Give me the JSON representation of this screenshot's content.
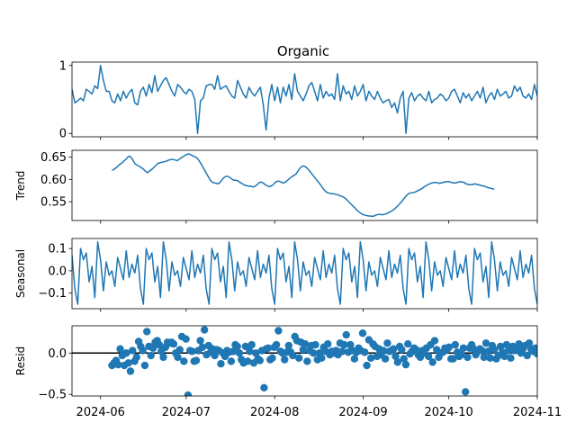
{
  "title": "Organic",
  "series_color": "#1f77b4",
  "zero_line_color": "#000000",
  "x_ticks": [
    "2024-06",
    "2024-07",
    "2024-08",
    "2024-09",
    "2024-10",
    "2024-11"
  ],
  "chart_data": {
    "type": "line",
    "xlim": [
      "2024-05-22",
      "2024-11-01"
    ],
    "panels": [
      {
        "name": "observed",
        "type": "line",
        "ylabel": "",
        "ylim": [
          -0.05,
          1.05
        ],
        "yticks": [
          0,
          1
        ],
        "ytick_labels": [
          "0",
          "1"
        ],
        "x_start": "2024-05-22",
        "values": [
          0.65,
          0.45,
          0.48,
          0.52,
          0.48,
          0.65,
          0.62,
          0.58,
          0.7,
          0.66,
          1.0,
          0.78,
          0.62,
          0.62,
          0.48,
          0.45,
          0.58,
          0.48,
          0.62,
          0.52,
          0.6,
          0.65,
          0.45,
          0.42,
          0.62,
          0.68,
          0.55,
          0.72,
          0.6,
          0.85,
          0.62,
          0.7,
          0.78,
          0.82,
          0.72,
          0.62,
          0.55,
          0.72,
          0.68,
          0.62,
          0.58,
          0.65,
          0.62,
          0.5,
          0.0,
          0.48,
          0.52,
          0.7,
          0.72,
          0.72,
          0.65,
          0.85,
          0.65,
          0.68,
          0.7,
          0.62,
          0.55,
          0.52,
          0.78,
          0.68,
          0.58,
          0.52,
          0.68,
          0.6,
          0.55,
          0.62,
          0.68,
          0.42,
          0.05,
          0.52,
          0.72,
          0.48,
          0.68,
          0.45,
          0.68,
          0.55,
          0.72,
          0.5,
          0.88,
          0.62,
          0.55,
          0.48,
          0.58,
          0.7,
          0.75,
          0.62,
          0.48,
          0.72,
          0.52,
          0.62,
          0.55,
          0.58,
          0.5,
          0.88,
          0.48,
          0.7,
          0.58,
          0.62,
          0.5,
          0.7,
          0.55,
          0.62,
          0.72,
          0.48,
          0.62,
          0.55,
          0.5,
          0.62,
          0.52,
          0.45,
          0.48,
          0.5,
          0.38,
          0.45,
          0.3,
          0.52,
          0.62,
          0.0,
          0.52,
          0.6,
          0.48,
          0.55,
          0.58,
          0.52,
          0.48,
          0.62,
          0.45,
          0.5,
          0.52,
          0.58,
          0.55,
          0.48,
          0.52,
          0.62,
          0.65,
          0.55,
          0.45,
          0.6,
          0.52,
          0.58,
          0.48,
          0.55,
          0.62,
          0.52,
          0.68,
          0.45,
          0.55,
          0.6,
          0.5,
          0.65,
          0.55,
          0.58,
          0.62,
          0.52,
          0.55,
          0.7,
          0.62,
          0.68,
          0.55,
          0.52,
          0.58,
          0.5,
          0.72,
          0.55,
          0.6,
          0.52,
          0.62,
          0.55,
          0.65,
          0.5,
          0.62,
          0.55,
          0.52,
          0.58,
          0.55,
          0.55,
          0.55,
          0.5,
          0.58,
          0.45
        ]
      },
      {
        "name": "trend",
        "type": "line",
        "ylabel": "Trend",
        "ylim": [
          0.508,
          0.665
        ],
        "yticks": [
          0.55,
          0.6,
          0.65
        ],
        "ytick_labels": [
          "0.55",
          "0.60",
          "0.65"
        ],
        "x_start": "2024-06-05",
        "values": [
          0.62,
          0.622,
          0.625,
          0.628,
          0.632,
          0.635,
          0.638,
          0.642,
          0.645,
          0.65,
          0.652,
          0.648,
          0.642,
          0.635,
          0.632,
          0.63,
          0.628,
          0.625,
          0.622,
          0.618,
          0.615,
          0.618,
          0.621,
          0.624,
          0.628,
          0.632,
          0.636,
          0.637,
          0.638,
          0.639,
          0.64,
          0.641,
          0.643,
          0.644,
          0.645,
          0.644,
          0.643,
          0.642,
          0.645,
          0.648,
          0.65,
          0.653,
          0.655,
          0.657,
          0.656,
          0.654,
          0.652,
          0.65,
          0.648,
          0.643,
          0.637,
          0.63,
          0.623,
          0.616,
          0.609,
          0.602,
          0.596,
          0.593,
          0.592,
          0.591,
          0.59,
          0.593,
          0.598,
          0.603,
          0.606,
          0.607,
          0.606,
          0.603,
          0.6,
          0.598,
          0.598,
          0.597,
          0.594,
          0.592,
          0.589,
          0.587,
          0.586,
          0.585,
          0.585,
          0.584,
          0.583,
          0.585,
          0.588,
          0.592,
          0.594,
          0.593,
          0.59,
          0.587,
          0.585,
          0.584,
          0.585,
          0.588,
          0.592,
          0.595,
          0.596,
          0.595,
          0.593,
          0.592,
          0.594,
          0.597,
          0.601,
          0.604,
          0.607,
          0.609,
          0.612,
          0.618,
          0.624,
          0.628,
          0.63,
          0.629,
          0.626,
          0.622,
          0.617,
          0.612,
          0.607,
          0.602,
          0.597,
          0.592,
          0.587,
          0.581,
          0.576,
          0.572,
          0.57,
          0.569,
          0.568,
          0.568,
          0.567,
          0.566,
          0.565,
          0.563,
          0.562,
          0.56,
          0.557,
          0.553,
          0.549,
          0.545,
          0.541,
          0.537,
          0.533,
          0.529,
          0.526,
          0.523,
          0.521,
          0.52,
          0.519,
          0.518,
          0.518,
          0.517,
          0.518,
          0.52,
          0.521,
          0.522,
          0.521,
          0.521,
          0.522,
          0.523,
          0.525,
          0.527,
          0.529,
          0.532,
          0.535,
          0.539,
          0.543,
          0.547,
          0.552,
          0.557,
          0.562,
          0.566,
          0.569,
          0.57,
          0.57,
          0.571,
          0.573,
          0.575,
          0.577,
          0.579,
          0.582,
          0.585,
          0.587,
          0.589,
          0.591,
          0.592,
          0.593,
          0.593,
          0.592,
          0.591,
          0.592,
          0.593,
          0.594,
          0.595,
          0.595,
          0.594,
          0.593,
          0.592,
          0.592,
          0.593,
          0.594,
          0.595,
          0.594,
          0.593,
          0.59,
          0.589,
          0.588,
          0.588,
          0.589,
          0.59,
          0.589,
          0.588,
          0.587,
          0.586,
          0.585,
          0.584,
          0.582,
          0.581,
          0.58,
          0.579,
          0.578
        ]
      },
      {
        "name": "seasonal",
        "type": "line",
        "ylabel": "Seasonal",
        "ylim": [
          -0.17,
          0.145
        ],
        "yticks": [
          -0.1,
          0.0,
          0.1
        ],
        "ytick_labels": [
          "−0.1",
          "0.0",
          "0.1"
        ],
        "x_start": "2024-05-22",
        "period": 23,
        "pattern": [
          0.07,
          -0.08,
          -0.15,
          0.1,
          0.05,
          0.08,
          -0.05,
          0.02,
          -0.12,
          0.13,
          0.05,
          -0.09,
          0.04,
          -0.02,
          0.0,
          -0.07,
          0.06,
          0.01,
          -0.04,
          0.09,
          -0.03,
          0.03,
          -0.01
        ]
      },
      {
        "name": "resid",
        "type": "scatter",
        "ylabel": "Resid",
        "ylim": [
          -0.52,
          0.33
        ],
        "yticks": [
          -0.5,
          0.0
        ],
        "ytick_labels": [
          "−0.5",
          "0.0"
        ],
        "baseline": 0,
        "x_start": "2024-06-05",
        "values": [
          -0.15,
          -0.12,
          -0.09,
          -0.14,
          0.05,
          -0.03,
          -0.15,
          0.0,
          -0.12,
          -0.22,
          0.03,
          -0.1,
          -0.05,
          0.14,
          0.08,
          0.03,
          -0.15,
          0.26,
          0.08,
          -0.03,
          0.06,
          0.13,
          0.15,
          0.1,
          0.02,
          -0.05,
          0.07,
          0.13,
          0.12,
          0.13,
          0.11,
          0.0,
          -0.05,
          0.04,
          0.2,
          -0.1,
          0.17,
          -0.51,
          0.03,
          0.02,
          -0.1,
          -0.09,
          0.03,
          0.15,
          0.07,
          0.28,
          -0.02,
          0.09,
          0.01,
          0.05,
          -0.03,
          0.04,
          0.03,
          -0.13,
          0.0,
          -0.04,
          0.03,
          0.01,
          -0.1,
          0.02,
          0.1,
          0.08,
          0.0,
          -0.08,
          -0.12,
          0.08,
          -0.1,
          0.02,
          0.1,
          -0.12,
          0.0,
          -0.07,
          -0.09,
          0.03,
          -0.42,
          0.05,
          0.06,
          -0.08,
          -0.06,
          0.07,
          0.1,
          0.27,
          0.02,
          0.0,
          -0.08,
          0.01,
          0.09,
          0.01,
          -0.03,
          0.2,
          0.15,
          -0.06,
          0.13,
          0.04,
          0.11,
          -0.1,
          0.03,
          0.09,
          0.0,
          0.1,
          -0.08,
          0.0,
          -0.06,
          0.07,
          0.02,
          0.11,
          -0.02,
          0.02,
          0.0,
          0.03,
          -0.02,
          0.12,
          0.02,
          0.1,
          0.22,
          0.01,
          0.1,
          0.03,
          -0.07,
          0.01,
          0.06,
          0.03,
          0.24,
          0.01,
          -0.15,
          0.16,
          -0.06,
          0.11,
          0.08,
          -0.04,
          0.05,
          -0.02,
          0.03,
          -0.07,
          0.12,
          0.02,
          0.03,
          0.05,
          -0.04,
          -0.11,
          0.08,
          0.04,
          -0.07,
          -0.14,
          0.11,
          -0.01,
          0.02,
          0.06,
          0.04,
          -0.02,
          -0.05,
          0.03,
          0.0,
          0.06,
          -0.04,
          0.1,
          -0.11,
          0.15,
          0.04,
          -0.05,
          0.0,
          0.01,
          0.06,
          0.04,
          0.07,
          -0.07,
          -0.07,
          0.1,
          0.01,
          -0.04,
          -0.02,
          0.06,
          -0.47,
          -0.05,
          0.06,
          0.1,
          0.05,
          -0.02,
          0.02,
          0.05,
          0.03,
          -0.05,
          0.12,
          0.02,
          -0.06,
          0.09,
          0.04,
          -0.07,
          -0.03,
          0.08,
          0.01,
          -0.04,
          0.1,
          0.03,
          -0.06,
          0.08,
          0.03,
          0.07,
          0.11,
          0.0,
          0.05,
          0.09,
          -0.03,
          0.12,
          0.04,
          0.02,
          0.06,
          -0.01,
          0.05,
          0.08,
          0.13,
          0.06,
          0.02,
          -0.06,
          0.09,
          0.04,
          0.0,
          0.12,
          0.08,
          0.05,
          0.1,
          0.03,
          0.11,
          -0.03,
          0.12,
          0.05,
          0.02,
          -0.08,
          -0.1,
          0.0,
          0.05,
          0.1,
          0.01,
          -0.05,
          0.06,
          0.03,
          -0.02,
          0.09,
          0.08,
          0.01,
          0.04,
          -0.05,
          0.1,
          0.02,
          -0.09,
          0.11,
          0.04,
          -0.02,
          0.0,
          0.05,
          0.08,
          0.03,
          0.11,
          0.02,
          -0.06,
          0.05,
          -0.15,
          0.11
        ]
      }
    ]
  }
}
